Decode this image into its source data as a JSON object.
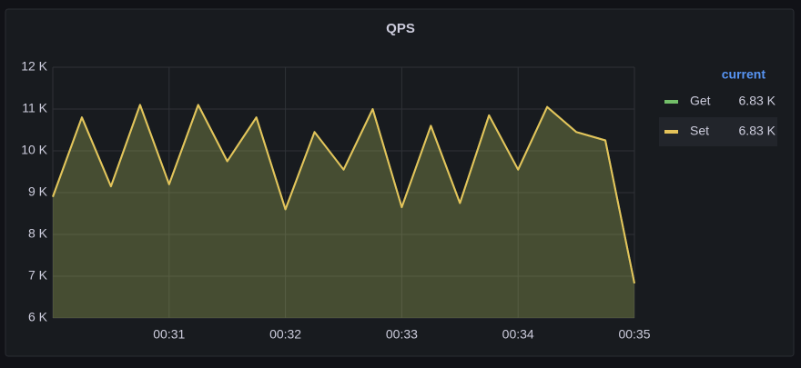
{
  "chart_data": {
    "type": "line",
    "title": "QPS",
    "x": [
      30,
      30.25,
      30.5,
      30.75,
      31,
      31.25,
      31.5,
      31.75,
      32,
      32.25,
      32.5,
      32.75,
      33,
      33.25,
      33.5,
      33.75,
      34,
      34.25,
      34.5,
      34.75,
      35
    ],
    "xlim": [
      30,
      35
    ],
    "xticks": [
      {
        "value": 31,
        "label": "00:31"
      },
      {
        "value": 32,
        "label": "00:32"
      },
      {
        "value": 33,
        "label": "00:33"
      },
      {
        "value": 34,
        "label": "00:34"
      },
      {
        "value": 35,
        "label": "00:35"
      }
    ],
    "ylim": [
      6000,
      12000
    ],
    "yticks": [
      {
        "value": 6000,
        "label": "6 K"
      },
      {
        "value": 7000,
        "label": "7 K"
      },
      {
        "value": 8000,
        "label": "8 K"
      },
      {
        "value": 9000,
        "label": "9 K"
      },
      {
        "value": 10000,
        "label": "10 K"
      },
      {
        "value": 11000,
        "label": "11 K"
      },
      {
        "value": 12000,
        "label": "12 K"
      }
    ],
    "grid": true,
    "legend_header": "current",
    "series": [
      {
        "name": "Get",
        "color": "#73bf69",
        "current": {
          "value": 6830,
          "label": "6.83 K"
        },
        "values": [
          8900,
          10800,
          9150,
          11100,
          9200,
          11100,
          9750,
          10800,
          8600,
          10450,
          9550,
          11000,
          8650,
          10600,
          8750,
          10850,
          9550,
          11050,
          10450,
          10250,
          6830
        ]
      },
      {
        "name": "Set",
        "color": "#e5c35a",
        "current": {
          "value": 6830,
          "label": "6.83 K"
        },
        "values": [
          8900,
          10800,
          9150,
          11100,
          9200,
          11100,
          9750,
          10800,
          8600,
          10450,
          9550,
          11000,
          8650,
          10600,
          8750,
          10850,
          9550,
          11050,
          10450,
          10250,
          6830
        ]
      }
    ]
  }
}
